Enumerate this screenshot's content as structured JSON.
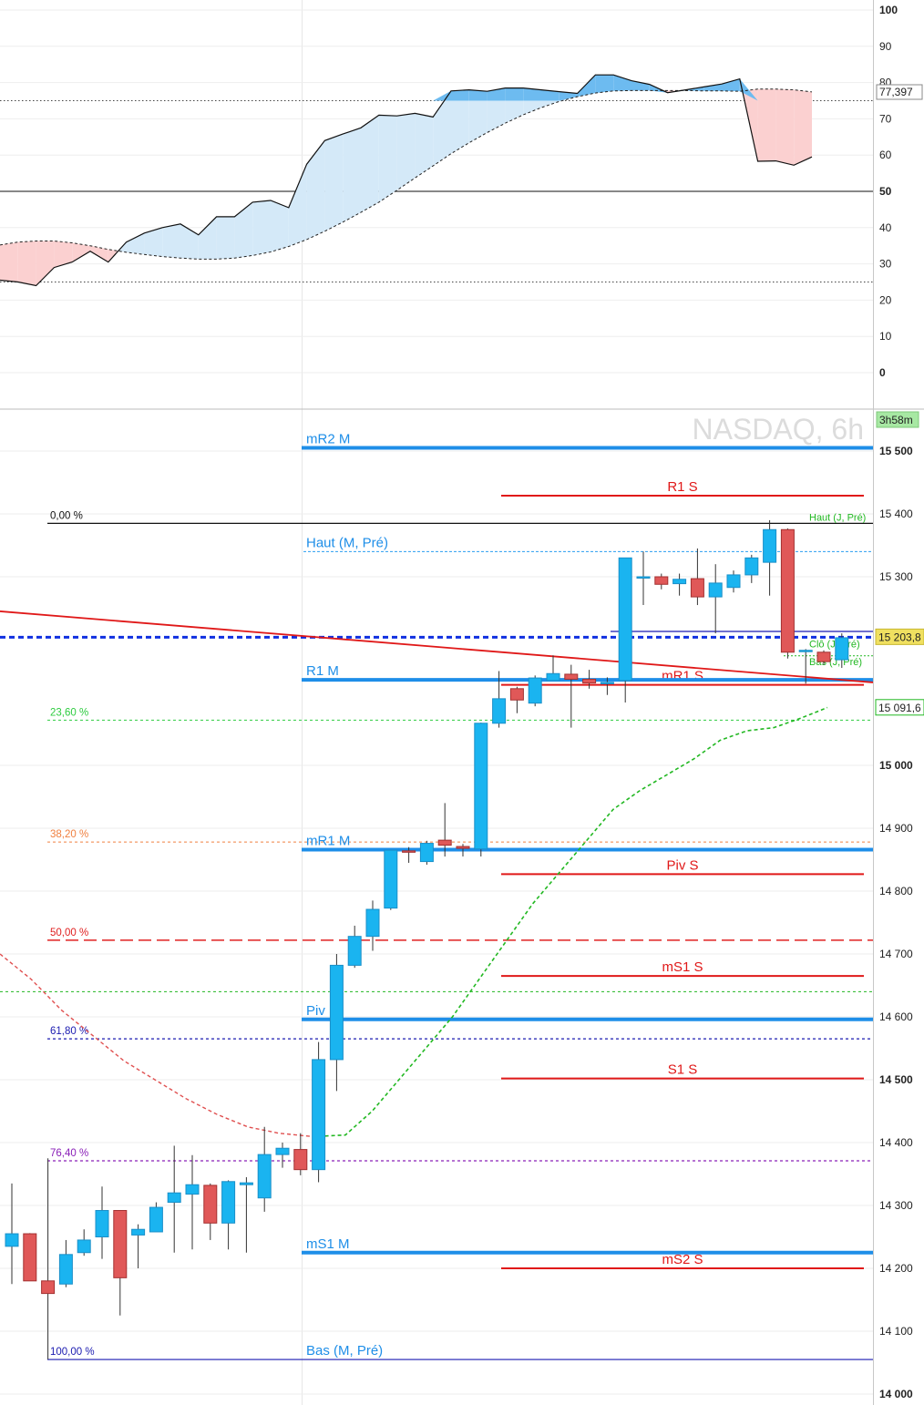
{
  "chart_data": [
    {
      "type": "area",
      "title": "",
      "ylim": [
        0,
        100
      ],
      "y_ticks": [
        "100",
        "90",
        "80",
        "70",
        "60",
        "50",
        "40",
        "30",
        "20",
        "10",
        "0"
      ],
      "reference_lines": [
        {
          "value": 75,
          "style": "dotted"
        },
        {
          "value": 50,
          "style": "solid"
        },
        {
          "value": 25,
          "style": "dotted"
        }
      ],
      "last_value_label": "77,397",
      "series": [
        {
          "values": [
            25.5,
            25,
            24,
            29,
            30.5,
            33.5,
            30.5,
            36,
            38.5,
            40,
            41,
            38,
            43,
            43,
            47,
            47.5,
            45.5,
            57.5,
            64,
            65.8,
            67.5,
            71,
            70.8,
            71.5,
            70.5,
            77.7,
            78,
            77.6,
            78.5,
            78.5,
            78,
            77.5,
            77,
            82.1,
            82.1,
            80.5,
            79.5,
            77.2,
            78,
            78.8,
            79.6,
            81,
            58.3,
            58.4,
            57.2,
            59.5
          ]
        },
        {
          "values": [
            35.2,
            36,
            36.3,
            36.3,
            35.8,
            35,
            34,
            33.2,
            32.6,
            32,
            31.6,
            31.3,
            31.3,
            31.6,
            32.3,
            33.3,
            34.8,
            36.7,
            39,
            41.5,
            44.2,
            47,
            50.3,
            53.7,
            57,
            60.4,
            63.4,
            66.2,
            68.8,
            71.1,
            73.1,
            74.8,
            76.1,
            77.1,
            77.7,
            77.8,
            77.8,
            77.8,
            77.8,
            77.7,
            77.7,
            77.6,
            78.2,
            78.2,
            78,
            77.4
          ]
        }
      ]
    },
    {
      "type": "candlestick",
      "title": "NASDAQ, 6h",
      "timer": "3h58m",
      "ylim": [
        14000,
        15600
      ],
      "y_ticks": [
        "15 500",
        "15 400",
        "15 300",
        "15 203,8",
        "15 091,6",
        "15 000",
        "14 900",
        "14 800",
        "14 700",
        "14 600",
        "14 500",
        "14 400",
        "14 300",
        "14 200",
        "14 100",
        "14 000"
      ],
      "last_price_label": "15 203,8",
      "ma_price_label": "15 091,6",
      "candles": [
        {
          "o": 14235,
          "h": 14335,
          "l": 14175,
          "c": 14255
        },
        {
          "o": 14255,
          "h": 14256,
          "l": 14180,
          "c": 14180
        },
        {
          "o": 14180,
          "h": 14375,
          "l": 14055,
          "c": 14160
        },
        {
          "o": 14175,
          "h": 14245,
          "l": 14170,
          "c": 14222
        },
        {
          "o": 14225,
          "h": 14262,
          "l": 14220,
          "c": 14245
        },
        {
          "o": 14250,
          "h": 14330,
          "l": 14215,
          "c": 14292
        },
        {
          "o": 14292,
          "h": 14292,
          "l": 14125,
          "c": 14185
        },
        {
          "o": 14253,
          "h": 14270,
          "l": 14200,
          "c": 14262
        },
        {
          "o": 14258,
          "h": 14305,
          "l": 14258,
          "c": 14297
        },
        {
          "o": 14305,
          "h": 14395,
          "l": 14225,
          "c": 14320
        },
        {
          "o": 14318,
          "h": 14380,
          "l": 14230,
          "c": 14333
        },
        {
          "o": 14332,
          "h": 14335,
          "l": 14245,
          "c": 14272
        },
        {
          "o": 14272,
          "h": 14340,
          "l": 14230,
          "c": 14338
        },
        {
          "o": 14333,
          "h": 14345,
          "l": 14225,
          "c": 14336
        },
        {
          "o": 14312,
          "h": 14425,
          "l": 14290,
          "c": 14381
        },
        {
          "o": 14381,
          "h": 14400,
          "l": 14360,
          "c": 14391
        },
        {
          "o": 14389,
          "h": 14415,
          "l": 14348,
          "c": 14357
        },
        {
          "o": 14357,
          "h": 14560,
          "l": 14337,
          "c": 14532
        },
        {
          "o": 14532,
          "h": 14700,
          "l": 14482,
          "c": 14682
        },
        {
          "o": 14682,
          "h": 14745,
          "l": 14678,
          "c": 14728
        },
        {
          "o": 14728,
          "h": 14785,
          "l": 14705,
          "c": 14771
        },
        {
          "o": 14773,
          "h": 14865,
          "l": 14770,
          "c": 14865
        },
        {
          "o": 14864,
          "h": 14870,
          "l": 14845,
          "c": 14863
        },
        {
          "o": 14847,
          "h": 14880,
          "l": 14842,
          "c": 14876
        },
        {
          "o": 14881,
          "h": 14940,
          "l": 14855,
          "c": 14873
        },
        {
          "o": 14871,
          "h": 14875,
          "l": 14855,
          "c": 14868
        },
        {
          "o": 14867,
          "h": 15068,
          "l": 14855,
          "c": 15067
        },
        {
          "o": 15067,
          "h": 15150,
          "l": 15060,
          "c": 15106
        },
        {
          "o": 15122,
          "h": 15125,
          "l": 15083,
          "c": 15104
        },
        {
          "o": 15099,
          "h": 15143,
          "l": 15094,
          "c": 15139
        },
        {
          "o": 15135,
          "h": 15175,
          "l": 15135,
          "c": 15146
        },
        {
          "o": 15145,
          "h": 15160,
          "l": 15060,
          "c": 15137
        },
        {
          "o": 15137,
          "h": 15152,
          "l": 15122,
          "c": 15131
        },
        {
          "o": 15130,
          "h": 15140,
          "l": 15112,
          "c": 15132
        },
        {
          "o": 15135,
          "h": 15330,
          "l": 15100,
          "c": 15330
        },
        {
          "o": 15300,
          "h": 15340,
          "l": 15255,
          "c": 15300
        },
        {
          "o": 15300,
          "h": 15305,
          "l": 15280,
          "c": 15288
        },
        {
          "o": 15289,
          "h": 15305,
          "l": 15270,
          "c": 15296
        },
        {
          "o": 15297,
          "h": 15345,
          "l": 15255,
          "c": 15268
        },
        {
          "o": 15268,
          "h": 15320,
          "l": 15210,
          "c": 15290
        },
        {
          "o": 15283,
          "h": 15310,
          "l": 15275,
          "c": 15303
        },
        {
          "o": 15303,
          "h": 15335,
          "l": 15290,
          "c": 15330
        },
        {
          "o": 15323,
          "h": 15390,
          "l": 15270,
          "c": 15375
        },
        {
          "o": 15375,
          "h": 15377,
          "l": 15170,
          "c": 15180
        },
        {
          "o": 15182,
          "h": 15185,
          "l": 15130,
          "c": 15183
        },
        {
          "o": 15180,
          "h": 15183,
          "l": 15160,
          "c": 15165
        },
        {
          "o": 15168,
          "h": 15210,
          "l": 15155,
          "c": 15203
        }
      ],
      "moving_averages": [
        {
          "color": "#22b822",
          "values": [
            14410,
            14412,
            14450,
            14500,
            14550,
            14600,
            14660,
            14720,
            14780,
            14830,
            14880,
            14930,
            14960,
            14985,
            15010,
            15040,
            15055,
            15060,
            15075,
            15092
          ]
        },
        {
          "color": "#e05050",
          "values": [
            14700,
            14660,
            14610,
            14570,
            14530,
            14500,
            14470,
            14445,
            14425,
            14415,
            14410
          ]
        }
      ],
      "pivot_levels_monthly": [
        {
          "label": "mR2 M",
          "value": 15505
        },
        {
          "label": "R1 M",
          "value": 15136
        },
        {
          "label": "mR1 M",
          "value": 14866
        },
        {
          "label": "Piv M",
          "value": 14596
        },
        {
          "label": "mS1 M",
          "value": 14225
        }
      ],
      "pivot_levels_weekly": [
        {
          "label": "R1 S",
          "value": 15429
        },
        {
          "label": "mR1 S",
          "value": 15128
        },
        {
          "label": "Piv S",
          "value": 14827
        },
        {
          "label": "mS1 S",
          "value": 14665
        },
        {
          "label": "S1 S",
          "value": 14502
        },
        {
          "label": "mS2 S",
          "value": 14200
        }
      ],
      "fibonacci": [
        {
          "label": "0,00 %",
          "value": 15385
        },
        {
          "label": "23,60 %",
          "value": 15072
        },
        {
          "label": "38,20 %",
          "value": 14878
        },
        {
          "label": "50,00 %",
          "value": 14722
        },
        {
          "label": "61,80 %",
          "value": 14565
        },
        {
          "label": "76,40 %",
          "value": 14371
        },
        {
          "label": "100,00 %",
          "value": 14055
        }
      ],
      "other_levels": [
        {
          "label": "Haut (M, Pré)",
          "value": 15340
        },
        {
          "label": "Bas (M, Pré)",
          "value": 14055
        },
        {
          "label": "Haut (J, Pré)",
          "value": 15385
        },
        {
          "label": "Clô (J, Pré)",
          "value": 15183
        },
        {
          "label": "Bas (J, Pré)",
          "value": 15155
        },
        {
          "label": "",
          "value": 15213
        },
        {
          "label": "",
          "value": 14640
        }
      ]
    }
  ]
}
